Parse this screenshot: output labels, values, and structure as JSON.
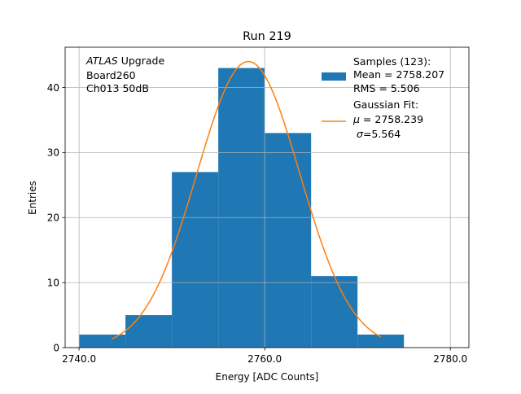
{
  "chart_data": {
    "type": "bar",
    "title": "Run 219",
    "xlabel": "Energy [ADC Counts]",
    "ylabel": "Entries",
    "xlim": [
      2738.5,
      2782.0
    ],
    "ylim": [
      0,
      46.2
    ],
    "x_ticks": [
      {
        "value": 2740,
        "label": "2740.0"
      },
      {
        "value": 2760,
        "label": "2760.0"
      },
      {
        "value": 2780,
        "label": "2780.0"
      }
    ],
    "y_ticks": [
      {
        "value": 0,
        "label": "0"
      },
      {
        "value": 10,
        "label": "10"
      },
      {
        "value": 20,
        "label": "20"
      },
      {
        "value": 30,
        "label": "30"
      },
      {
        "value": 40,
        "label": "40"
      }
    ],
    "grid": true,
    "histogram": {
      "bin_edges": [
        2740,
        2745,
        2750,
        2755,
        2760,
        2765,
        2770,
        2775
      ],
      "counts": [
        2,
        5,
        27,
        43,
        33,
        11,
        2
      ],
      "color": "#1f77b4"
    },
    "fit": {
      "mu": 2758.239,
      "sigma": 5.564,
      "amplitude": 44.0,
      "x_range": [
        2743.5,
        2772.5
      ],
      "color": "#ff7f0e"
    },
    "annotation": {
      "experiment": "ATLAS",
      "line1_rest": " Upgrade",
      "line2": " Board260",
      "line3": " Ch013 50dB"
    },
    "legend": {
      "placement": "top-right",
      "samples_title": "Samples (123):",
      "samples_mean": " Mean = 2758.207",
      "samples_rms": " RMS = 5.506",
      "fit_title": "Gaussian Fit:",
      "fit_mu_symbol": "μ",
      "fit_mu_text": " = 2758.239",
      "fit_sigma_symbol": "σ",
      "fit_sigma_text": "=5.564"
    }
  }
}
